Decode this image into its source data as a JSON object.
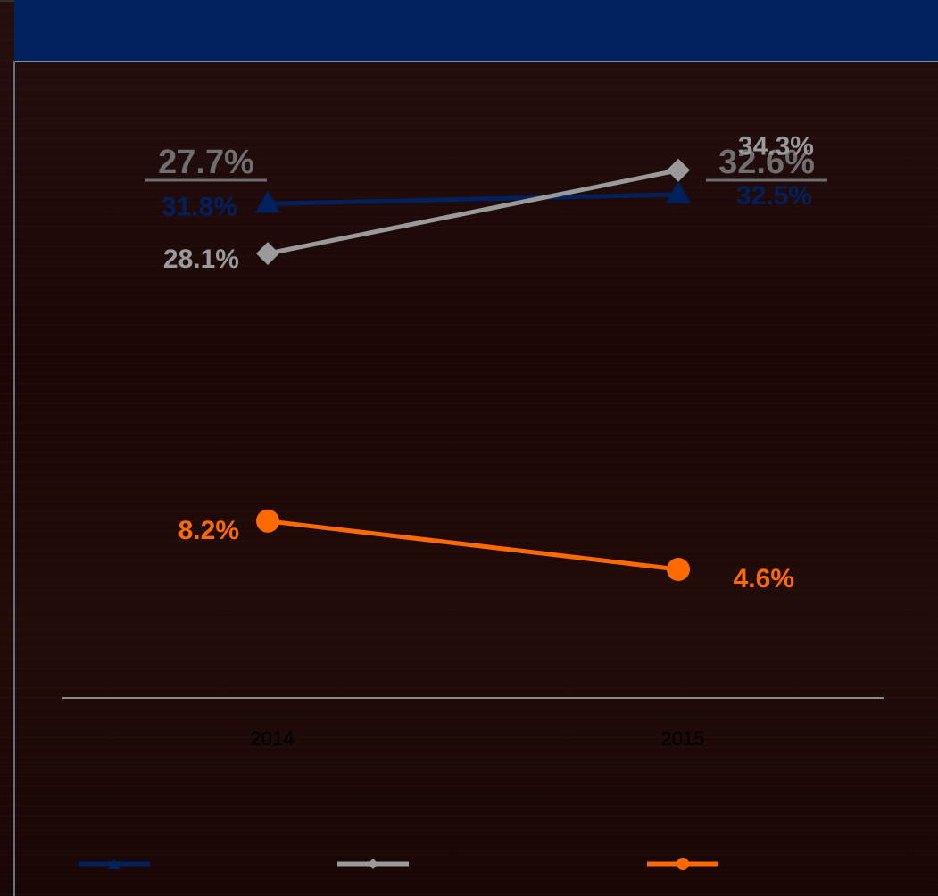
{
  "title": "",
  "colors": {
    "title_bar": "#00215e",
    "series_blue": "#00215e",
    "series_gray": "#9a9a9a",
    "series_orange": "#ff6a00",
    "total_label": "#6f6f6f",
    "axis_line": "#8a8a8a",
    "tick_label": "#000000"
  },
  "chart_data": {
    "type": "line",
    "categories": [
      "2014",
      "2015"
    ],
    "category_totals": [
      "27.7%",
      "32.6%"
    ],
    "series": [
      {
        "values": [
          31.8,
          32.5
        ],
        "labels": [
          "31.8%",
          "32.5%"
        ],
        "marker": "triangle",
        "color": "#00215e"
      },
      {
        "values": [
          28.1,
          34.3
        ],
        "labels": [
          "28.1%",
          "34.3%"
        ],
        "marker": "diamond",
        "color": "#9a9a9a"
      },
      {
        "values": [
          8.2,
          4.6
        ],
        "labels": [
          "8.2%",
          "4.6%"
        ],
        "marker": "circle",
        "color": "#ff6a00"
      }
    ],
    "xlabel": "",
    "ylabel": "",
    "grid": false,
    "legend": "bottom"
  }
}
